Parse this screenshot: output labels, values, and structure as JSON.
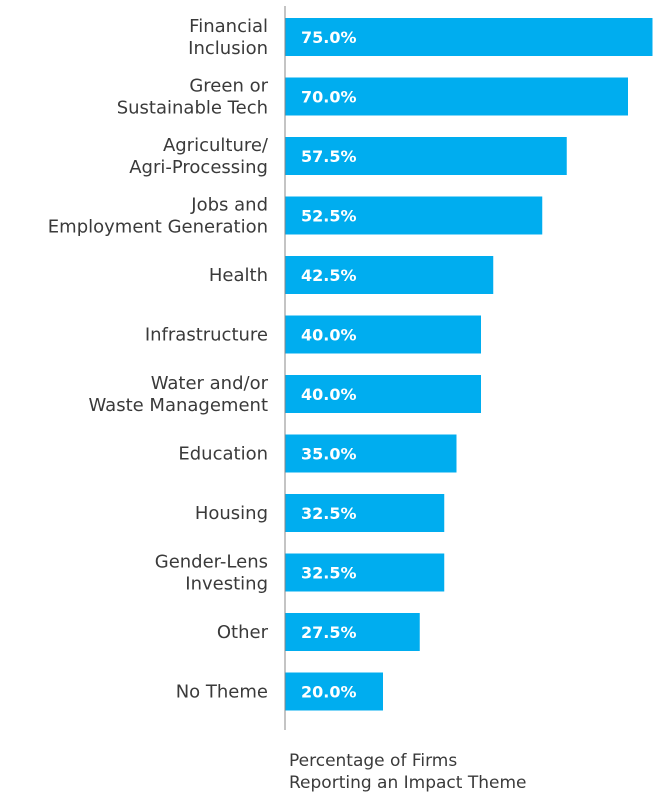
{
  "chart_data": {
    "type": "bar",
    "orientation": "horizontal",
    "categories": [
      [
        "Financial",
        "Inclusion"
      ],
      [
        "Green or",
        "Sustainable Tech"
      ],
      [
        "Agriculture/",
        "Agri-Processing"
      ],
      [
        "Jobs and",
        "Employment Generation"
      ],
      [
        "Health"
      ],
      [
        "Infrastructure"
      ],
      [
        "Water and/or",
        "Waste Management"
      ],
      [
        "Education"
      ],
      [
        "Housing"
      ],
      [
        "Gender-Lens",
        "Investing"
      ],
      [
        "Other"
      ],
      [
        "No Theme"
      ]
    ],
    "values": [
      75.0,
      70.0,
      57.5,
      52.5,
      42.5,
      40.0,
      40.0,
      35.0,
      32.5,
      32.5,
      27.5,
      20.0
    ],
    "value_labels": [
      "75.0%",
      "70.0%",
      "57.5%",
      "52.5%",
      "42.5%",
      "40.0%",
      "40.0%",
      "35.0%",
      "32.5%",
      "32.5%",
      "27.5%",
      "20.0%"
    ],
    "xlabel": [
      "Percentage of Firms",
      "Reporting an Impact Theme"
    ],
    "xlim": [
      0,
      100
    ],
    "bar_color": "#00adef",
    "label_color": "#ffffff",
    "grid": false,
    "legend": "none"
  }
}
